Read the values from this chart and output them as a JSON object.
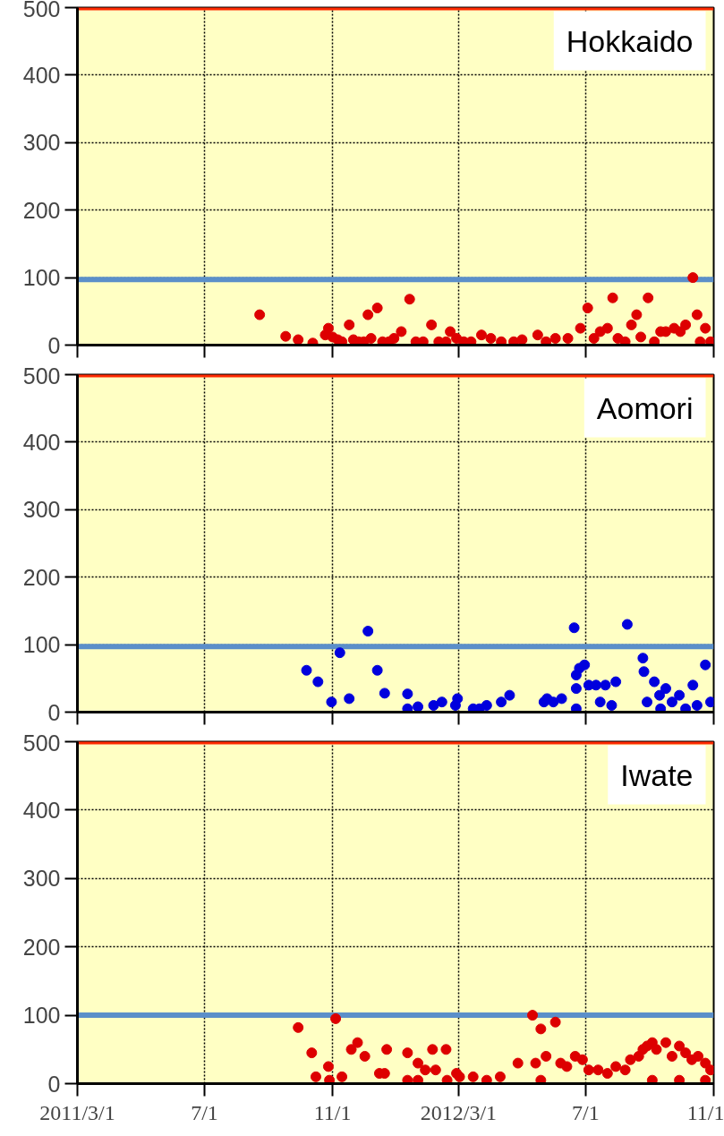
{
  "chart_data": [
    {
      "type": "scatter",
      "annotations": [
        "Hokkaido"
      ],
      "xlim": [
        "2011-03-01",
        "2012-11-01"
      ],
      "xticks": [
        {
          "value": "2011-03-01",
          "label": null
        },
        {
          "value": "2011-07-01",
          "label": null
        },
        {
          "value": "2011-11-01",
          "label": null
        },
        {
          "value": "2012-03-01",
          "label": null
        },
        {
          "value": "2012-07-01",
          "label": null
        },
        {
          "value": "2012-11-01",
          "label": null
        }
      ],
      "ylim": [
        0,
        500
      ],
      "yticks": [
        0,
        100,
        200,
        300,
        400,
        500
      ],
      "grid": true,
      "marker": "circle",
      "tick_labels": "y",
      "ref_lines": [
        {
          "axis": "y",
          "value": 500,
          "color": "#ff2a00"
        },
        {
          "axis": "y",
          "value": 97,
          "color": "#5b8fc9"
        }
      ],
      "series": [
        {
          "color": "#dd0000",
          "x": [
            "2011-08-23",
            "2011-09-17",
            "2011-09-29",
            "2011-10-13",
            "2011-10-25",
            "2011-10-28",
            "2011-11-01",
            "2011-11-06",
            "2011-11-10",
            "2011-11-17",
            "2011-11-21",
            "2011-11-26",
            "2011-12-01",
            "2011-12-05",
            "2011-12-08",
            "2011-12-14",
            "2011-12-19",
            "2011-12-25",
            "2011-12-30",
            "2012-01-06",
            "2012-01-14",
            "2012-01-20",
            "2012-01-27",
            "2012-02-04",
            "2012-02-11",
            "2012-02-18",
            "2012-02-22",
            "2012-02-28",
            "2012-03-06",
            "2012-03-13",
            "2012-03-23",
            "2012-04-01",
            "2012-04-11",
            "2012-04-23",
            "2012-05-01",
            "2012-05-16",
            "2012-05-24",
            "2012-06-02",
            "2012-06-14",
            "2012-06-26",
            "2012-07-03",
            "2012-07-09",
            "2012-07-15",
            "2012-07-22",
            "2012-07-27",
            "2012-08-01",
            "2012-08-08",
            "2012-08-14",
            "2012-08-19",
            "2012-08-23",
            "2012-08-30",
            "2012-09-05",
            "2012-09-11",
            "2012-09-16",
            "2012-09-24",
            "2012-09-30",
            "2012-10-05",
            "2012-10-12",
            "2012-10-16",
            "2012-10-19",
            "2012-10-24",
            "2012-10-29"
          ],
          "values": [
            45,
            13,
            8,
            3,
            15,
            25,
            12,
            8,
            5,
            30,
            8,
            5,
            5,
            45,
            10,
            55,
            5,
            5,
            10,
            20,
            68,
            5,
            5,
            30,
            5,
            5,
            20,
            10,
            5,
            5,
            15,
            10,
            5,
            5,
            8,
            15,
            5,
            10,
            10,
            25,
            55,
            10,
            20,
            25,
            70,
            10,
            5,
            30,
            45,
            12,
            70,
            5,
            20,
            20,
            25,
            20,
            30,
            100,
            45,
            5,
            25,
            5
          ]
        }
      ]
    },
    {
      "type": "scatter",
      "annotations": [
        "Aomori"
      ],
      "xlim": [
        "2011-03-01",
        "2012-11-01"
      ],
      "xticks": [
        {
          "value": "2011-03-01",
          "label": null
        },
        {
          "value": "2011-07-01",
          "label": null
        },
        {
          "value": "2011-11-01",
          "label": null
        },
        {
          "value": "2012-03-01",
          "label": null
        },
        {
          "value": "2012-07-01",
          "label": null
        },
        {
          "value": "2012-11-01",
          "label": null
        }
      ],
      "ylim": [
        0,
        500
      ],
      "yticks": [
        0,
        100,
        200,
        300,
        400,
        500
      ],
      "grid": true,
      "marker": "circle",
      "tick_labels": "y",
      "ref_lines": [
        {
          "axis": "y",
          "value": 500,
          "color": "#ff2a00"
        },
        {
          "axis": "y",
          "value": 97,
          "color": "#5b8fc9"
        }
      ],
      "series": [
        {
          "color": "#0000dd",
          "x": [
            "2011-10-07",
            "2011-10-18",
            "2011-10-31",
            "2011-11-08",
            "2011-11-17",
            "2011-12-05",
            "2011-12-14",
            "2011-12-21",
            "2012-01-12",
            "2012-01-12",
            "2012-01-22",
            "2012-02-06",
            "2012-02-14",
            "2012-02-27",
            "2012-02-29",
            "2012-03-15",
            "2012-03-21",
            "2012-03-28",
            "2012-04-11",
            "2012-04-19",
            "2012-05-22",
            "2012-05-25",
            "2012-05-31",
            "2012-06-08",
            "2012-06-20",
            "2012-06-22",
            "2012-06-22",
            "2012-06-22",
            "2012-06-25",
            "2012-06-30",
            "2012-07-04",
            "2012-07-11",
            "2012-07-15",
            "2012-07-20",
            "2012-07-26",
            "2012-07-30",
            "2012-08-10",
            "2012-08-25",
            "2012-08-26",
            "2012-08-29",
            "2012-09-05",
            "2012-09-10",
            "2012-09-11",
            "2012-09-16",
            "2012-09-22",
            "2012-09-29",
            "2012-10-05",
            "2012-10-12",
            "2012-10-16",
            "2012-10-24",
            "2012-10-29"
          ],
          "values": [
            62,
            45,
            15,
            88,
            20,
            120,
            62,
            28,
            27,
            5,
            8,
            10,
            15,
            10,
            20,
            5,
            5,
            10,
            15,
            25,
            15,
            20,
            15,
            20,
            125,
            55,
            35,
            5,
            65,
            70,
            40,
            40,
            15,
            40,
            10,
            45,
            130,
            80,
            60,
            15,
            45,
            25,
            5,
            35,
            15,
            25,
            5,
            40,
            10,
            70,
            15
          ]
        }
      ]
    },
    {
      "type": "scatter",
      "annotations": [
        "Iwate"
      ],
      "xlim": [
        "2011-03-01",
        "2012-11-01"
      ],
      "xticks": [
        {
          "value": "2011-03-01",
          "label": "2011/3/1"
        },
        {
          "value": "2011-07-01",
          "label": "7/1"
        },
        {
          "value": "2011-11-01",
          "label": "11/1"
        },
        {
          "value": "2012-03-01",
          "label": "2012/3/1"
        },
        {
          "value": "2012-07-01",
          "label": "7/1"
        },
        {
          "value": "2012-11-01",
          "label": "11/1"
        }
      ],
      "ylim": [
        0,
        500
      ],
      "yticks": [
        0,
        100,
        200,
        300,
        400,
        500
      ],
      "grid": true,
      "marker": "circle",
      "ref_lines": [
        {
          "axis": "y",
          "value": 500,
          "color": "#ff2a00"
        },
        {
          "axis": "y",
          "value": 100,
          "color": "#5b8fc9"
        }
      ],
      "series": [
        {
          "color": "#dd0000",
          "x": [
            "2011-09-29",
            "2011-10-12",
            "2011-10-16",
            "2011-10-28",
            "2011-10-29",
            "2011-11-04",
            "2011-11-10",
            "2011-11-19",
            "2011-11-25",
            "2011-12-02",
            "2011-12-16",
            "2011-12-21",
            "2011-12-23",
            "2012-01-12",
            "2012-01-12",
            "2012-01-22",
            "2012-01-22",
            "2012-01-29",
            "2012-02-05",
            "2012-02-08",
            "2012-02-18",
            "2012-02-19",
            "2012-02-28",
            "2012-03-02",
            "2012-03-15",
            "2012-03-28",
            "2012-04-10",
            "2012-04-27",
            "2012-05-11",
            "2012-05-14",
            "2012-05-19",
            "2012-05-19",
            "2012-05-24",
            "2012-06-02",
            "2012-06-07",
            "2012-06-13",
            "2012-06-21",
            "2012-06-28",
            "2012-07-04",
            "2012-07-13",
            "2012-07-22",
            "2012-07-30",
            "2012-08-08",
            "2012-08-13",
            "2012-08-21",
            "2012-08-25",
            "2012-08-29",
            "2012-09-03",
            "2012-09-03",
            "2012-09-07",
            "2012-09-16",
            "2012-09-22",
            "2012-09-29",
            "2012-09-29",
            "2012-10-05",
            "2012-10-11",
            "2012-10-17",
            "2012-10-24",
            "2012-10-24",
            "2012-10-29"
          ],
          "values": [
            82,
            45,
            10,
            25,
            5,
            95,
            10,
            50,
            60,
            40,
            15,
            15,
            50,
            45,
            5,
            30,
            5,
            20,
            50,
            20,
            50,
            5,
            15,
            10,
            10,
            5,
            10,
            30,
            100,
            30,
            80,
            5,
            40,
            90,
            30,
            25,
            40,
            35,
            20,
            20,
            15,
            25,
            20,
            35,
            40,
            50,
            55,
            60,
            5,
            50,
            60,
            40,
            55,
            5,
            45,
            35,
            40,
            30,
            5,
            20
          ]
        }
      ]
    }
  ]
}
